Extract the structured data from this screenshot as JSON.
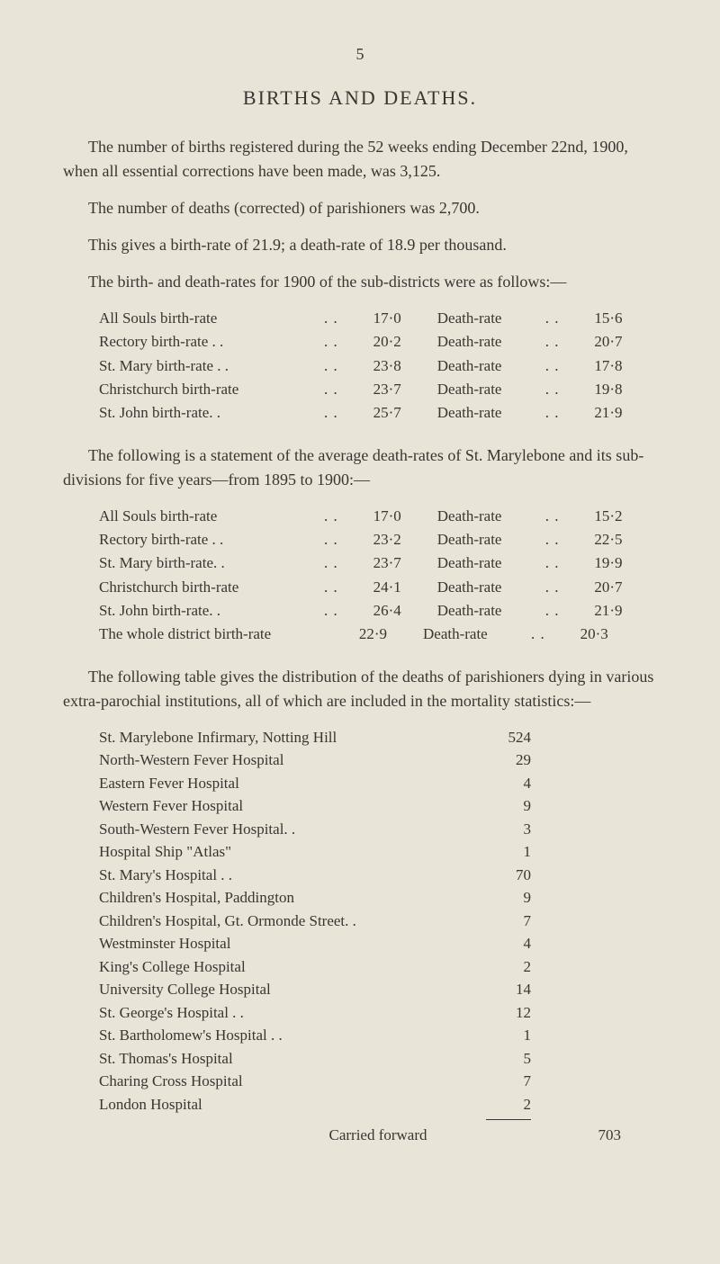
{
  "page_number": "5",
  "title": "BIRTHS AND DEATHS.",
  "paragraphs": {
    "p1": "The number of births registered during the 52 weeks ending December 22nd, 1900, when all essential corrections have been made, was 3,125.",
    "p2": "The number of deaths (corrected) of parishioners was 2,700.",
    "p3": "This gives a birth-rate of 21.9; a death-rate of 18.9 per thousand.",
    "p4": "The birth- and death-rates for 1900 of the sub-districts were as follows:—",
    "p5": "The following is a statement of the average death-rates of St. Marylebone and its sub-divisions for five years—from 1895 to 1900:—",
    "p6": "The following table gives the distribution of the deaths of parishioners dying in various extra-parochial institutions, all of which are included in the mortality statistics:—"
  },
  "table1": {
    "rows": [
      {
        "label": "All Souls birth-rate",
        "v1": "17·0",
        "label2": "Death-rate",
        "v2": "15·6"
      },
      {
        "label": "Rectory birth-rate . .",
        "v1": "20·2",
        "label2": "Death-rate",
        "v2": "20·7"
      },
      {
        "label": "St. Mary birth-rate . .",
        "v1": "23·8",
        "label2": "Death-rate",
        "v2": "17·8"
      },
      {
        "label": "Christchurch birth-rate",
        "v1": "23·7",
        "label2": "Death-rate",
        "v2": "19·8"
      },
      {
        "label": "St. John birth-rate. .",
        "v1": "25·7",
        "label2": "Death-rate",
        "v2": "21·9"
      }
    ]
  },
  "table2": {
    "rows": [
      {
        "label": "All Souls birth-rate",
        "v1": "17·0",
        "label2": "Death-rate",
        "v2": "15·2"
      },
      {
        "label": "Rectory birth-rate . .",
        "v1": "23·2",
        "label2": "Death-rate",
        "v2": "22·5"
      },
      {
        "label": "St. Mary birth-rate. .",
        "v1": "23·7",
        "label2": "Death-rate",
        "v2": "19·9"
      },
      {
        "label": "Christchurch birth-rate",
        "v1": "24·1",
        "label2": "Death-rate",
        "v2": "20·7"
      },
      {
        "label": "St. John birth-rate. .",
        "v1": "26·4",
        "label2": "Death-rate",
        "v2": "21·9"
      },
      {
        "label": "The whole district birth-rate",
        "v1": "22·9",
        "label2": "Death-rate",
        "v2": "20·3"
      }
    ]
  },
  "hospitals": {
    "rows": [
      {
        "label": "St. Marylebone Infirmary, Notting Hill",
        "val": "524"
      },
      {
        "label": "North-Western Fever Hospital",
        "val": "29"
      },
      {
        "label": "Eastern Fever Hospital",
        "val": "4"
      },
      {
        "label": "Western Fever Hospital",
        "val": "9"
      },
      {
        "label": "South-Western Fever Hospital. .",
        "val": "3"
      },
      {
        "label": "Hospital Ship \"Atlas\"",
        "val": "1"
      },
      {
        "label": "St. Mary's Hospital . .",
        "val": "70"
      },
      {
        "label": "Children's Hospital, Paddington",
        "val": "9"
      },
      {
        "label": "Children's Hospital, Gt. Ormonde Street. .",
        "val": "7"
      },
      {
        "label": "Westminster Hospital",
        "val": "4"
      },
      {
        "label": "King's College Hospital",
        "val": "2"
      },
      {
        "label": "University College Hospital",
        "val": "14"
      },
      {
        "label": "St. George's Hospital . .",
        "val": "12"
      },
      {
        "label": "St. Bartholomew's Hospital . .",
        "val": "1"
      },
      {
        "label": "St. Thomas's Hospital",
        "val": "5"
      },
      {
        "label": "Charing Cross Hospital",
        "val": "7"
      },
      {
        "label": "London Hospital",
        "val": "2"
      }
    ],
    "carried_label": "Carried forward",
    "carried_value": "703"
  },
  "colors": {
    "background": "#e8e4d8",
    "text": "#3a3530"
  }
}
